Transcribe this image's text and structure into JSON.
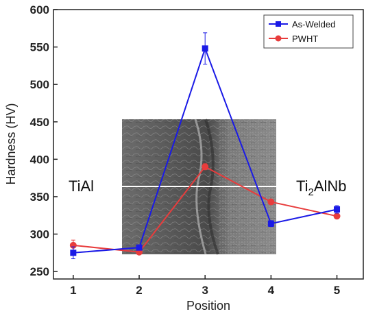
{
  "chart_data": {
    "type": "line",
    "xlabel": "Position",
    "ylabel": "Hardness (HV)",
    "x": [
      1,
      2,
      3,
      4,
      5
    ],
    "xticks": [
      "1",
      "2",
      "3",
      "4",
      "5"
    ],
    "xlim": [
      0.7,
      5.4
    ],
    "ylim": [
      240,
      600
    ],
    "yticks": [
      250,
      300,
      350,
      400,
      450,
      500,
      550,
      600
    ],
    "grid": false,
    "legend_position": "top-right",
    "series": [
      {
        "name": "As-Welded",
        "color": "#1a1ae6",
        "marker": "square",
        "values": [
          275,
          282,
          548,
          314,
          333
        ],
        "errors": [
          8,
          3,
          21,
          4,
          5
        ]
      },
      {
        "name": "PWHT",
        "color": "#e83c3c",
        "marker": "circle",
        "values": [
          285,
          276,
          390,
          343,
          324
        ],
        "errors": [
          7,
          3,
          4,
          3,
          3
        ]
      }
    ],
    "annotations": [
      {
        "text": "TiAl"
      },
      {
        "base": "Ti",
        "sub": "2",
        "rest": "AlNb"
      }
    ],
    "inset_image": "SEM micrograph of weld cross-section"
  }
}
